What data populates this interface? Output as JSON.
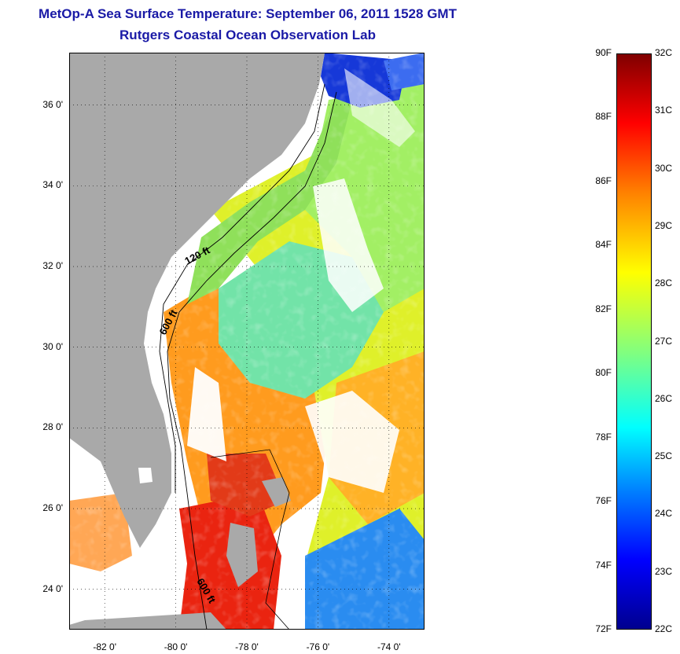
{
  "header": {
    "title": "MetOp-A Sea Surface Temperature:  September 06, 2011 1528 GMT",
    "subtitle": "Rutgers Coastal Ocean Observation Lab"
  },
  "map": {
    "lon_range": [
      -83,
      -73
    ],
    "lat_range": [
      23,
      37.3
    ],
    "lat_ticks": [
      "36 0'",
      "34 0'",
      "32 0'",
      "30 0'",
      "28 0'",
      "26 0'",
      "24 0'"
    ],
    "lat_values": [
      36,
      34,
      32,
      30,
      28,
      26,
      24
    ],
    "lon_ticks": [
      "-82 0'",
      "-80 0'",
      "-78 0'",
      "-76 0'",
      "-74 0'"
    ],
    "lon_values": [
      -82,
      -80,
      -78,
      -76,
      -74
    ],
    "contour_labels": [
      "120 ft",
      "600 ft",
      "600 ft"
    ],
    "land_color": "#a9a9a9",
    "grid": "dotted"
  },
  "colorbar": {
    "fahrenheit_labels": [
      "90F",
      "88F",
      "86F",
      "84F",
      "82F",
      "80F",
      "78F",
      "76F",
      "74F",
      "72F"
    ],
    "fahrenheit_values": [
      90,
      88,
      86,
      84,
      82,
      80,
      78,
      76,
      74,
      72
    ],
    "celsius_labels": [
      "32C",
      "31C",
      "30C",
      "29C",
      "28C",
      "27C",
      "26C",
      "25C",
      "24C",
      "23C",
      "22C"
    ],
    "celsius_values": [
      32,
      31,
      30,
      29,
      28,
      27,
      26,
      25,
      24,
      23,
      22
    ],
    "range_f": [
      72,
      90
    ],
    "range_c": [
      22,
      32
    ]
  }
}
